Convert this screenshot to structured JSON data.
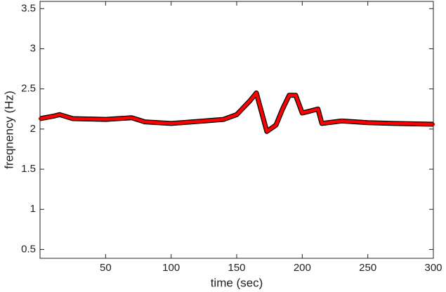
{
  "chart_data": {
    "type": "line",
    "xlabel": "time (sec)",
    "ylabel": "freqnency (Hz)",
    "x": [
      0,
      10,
      15,
      25,
      50,
      70,
      80,
      100,
      125,
      140,
      150,
      160,
      165,
      170,
      173,
      180,
      185,
      190,
      195,
      200,
      205,
      212,
      215,
      230,
      250,
      270,
      300
    ],
    "values": [
      2.13,
      2.16,
      2.18,
      2.13,
      2.12,
      2.14,
      2.09,
      2.07,
      2.1,
      2.12,
      2.18,
      2.35,
      2.45,
      2.15,
      1.97,
      2.05,
      2.25,
      2.42,
      2.42,
      2.2,
      2.22,
      2.25,
      2.07,
      2.1,
      2.08,
      2.07,
      2.06
    ],
    "color": "#ff0000",
    "xlim": [
      0,
      300
    ],
    "xticks": [
      50,
      100,
      150,
      200,
      250,
      300
    ],
    "ylim": [
      0.39,
      3.59
    ],
    "yticks": [
      0.5,
      1,
      1.5,
      2,
      2.5,
      3,
      3.5
    ]
  }
}
